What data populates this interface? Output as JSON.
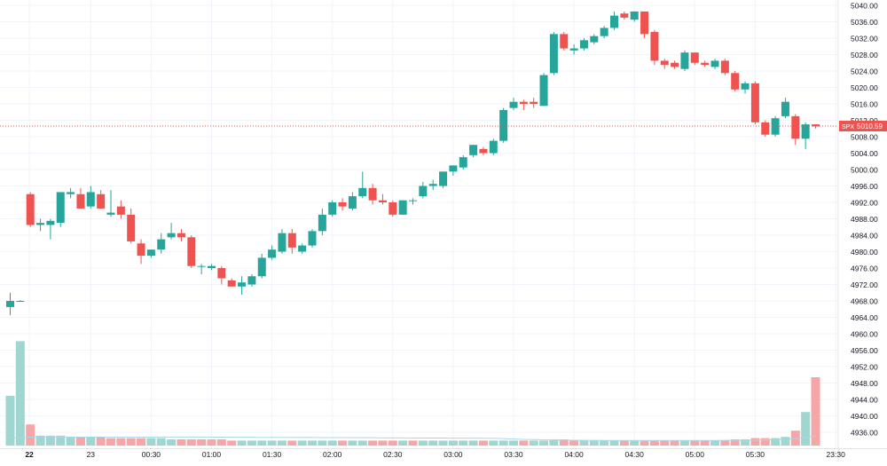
{
  "chart_data": {
    "type": "candlestick",
    "symbol": "SPX",
    "last_price": "5010.59",
    "last_price_value": 5010.59,
    "colors": {
      "up": "#26a69a",
      "down": "#ef5350",
      "volume_up": "#9fd6d0",
      "volume_down": "#f6a6a6",
      "volume_ma": "#a8d8e8",
      "price_line": "#ef5350",
      "grid": "#f0f3fa",
      "axis_text": "#131722"
    },
    "ylim": [
      4932,
      5042
    ],
    "volume_ylim": [
      0,
      100
    ],
    "x_ticks": [
      {
        "label": "22",
        "index": 1.9,
        "bold": true
      },
      {
        "label": "23",
        "index": 8
      },
      {
        "label": "00:30",
        "index": 14
      },
      {
        "label": "01:00",
        "index": 20
      },
      {
        "label": "01:30",
        "index": 26
      },
      {
        "label": "02:00",
        "index": 32
      },
      {
        "label": "02:30",
        "index": 38
      },
      {
        "label": "03:00",
        "index": 44
      },
      {
        "label": "03:30",
        "index": 50
      },
      {
        "label": "04:00",
        "index": 56
      },
      {
        "label": "04:30",
        "index": 62
      },
      {
        "label": "05:00",
        "index": 68
      },
      {
        "label": "05:30",
        "index": 74
      },
      {
        "label": "23:30",
        "index": 82
      }
    ],
    "y_ticks": [
      "5040.00",
      "5036.00",
      "5032.00",
      "5028.00",
      "5024.00",
      "5020.00",
      "5016.00",
      "5012.00",
      "5008.00",
      "5004.00",
      "5000.00",
      "4996.00",
      "4992.00",
      "4988.00",
      "4984.00",
      "4980.00",
      "4976.00",
      "4972.00",
      "4968.00",
      "4964.00",
      "4960.00",
      "4956.00",
      "4952.00",
      "4948.00",
      "4944.00",
      "4940.00",
      "4936.00"
    ],
    "candles": [
      {
        "o": 4966.5,
        "h": 4970.0,
        "l": 4964.5,
        "c": 4968.0
      },
      {
        "o": 4968.0,
        "h": 4968.2,
        "l": 4967.8,
        "c": 4968.0
      },
      {
        "o": 4994.0,
        "h": 4994.5,
        "l": 4986.0,
        "c": 4986.5
      },
      {
        "o": 4986.5,
        "h": 4988.0,
        "l": 4985.0,
        "c": 4987.0
      },
      {
        "o": 4986.5,
        "h": 4988.0,
        "l": 4983.0,
        "c": 4987.5
      },
      {
        "o": 4987.0,
        "h": 4994.5,
        "l": 4986.0,
        "c": 4994.5
      },
      {
        "o": 4994.0,
        "h": 4995.5,
        "l": 4993.0,
        "c": 4994.5
      },
      {
        "o": 4994.0,
        "h": 4995.5,
        "l": 4990.5,
        "c": 4990.5
      },
      {
        "o": 4991.0,
        "h": 4996.0,
        "l": 4990.5,
        "c": 4994.5
      },
      {
        "o": 4994.0,
        "h": 4995.0,
        "l": 4990.5,
        "c": 4990.5
      },
      {
        "o": 4989.0,
        "h": 4995.0,
        "l": 4988.5,
        "c": 4989.5
      },
      {
        "o": 4991.0,
        "h": 4992.5,
        "l": 4988.0,
        "c": 4989.0
      },
      {
        "o": 4989.0,
        "h": 4990.5,
        "l": 4982.0,
        "c": 4982.5
      },
      {
        "o": 4982.0,
        "h": 4983.0,
        "l": 4977.0,
        "c": 4979.0
      },
      {
        "o": 4979.0,
        "h": 4980.5,
        "l": 4978.5,
        "c": 4980.5
      },
      {
        "o": 4980.5,
        "h": 4984.5,
        "l": 4979.5,
        "c": 4983.0
      },
      {
        "o": 4983.5,
        "h": 4987.0,
        "l": 4983.0,
        "c": 4984.5
      },
      {
        "o": 4984.5,
        "h": 4985.5,
        "l": 4982.5,
        "c": 4983.5
      },
      {
        "o": 4983.5,
        "h": 4984.0,
        "l": 4976.0,
        "c": 4976.5
      },
      {
        "o": 4976.5,
        "h": 4977.0,
        "l": 4974.5,
        "c": 4976.5
      },
      {
        "o": 4976.0,
        "h": 4977.0,
        "l": 4975.5,
        "c": 4976.5
      },
      {
        "o": 4976.0,
        "h": 4976.5,
        "l": 4972.0,
        "c": 4973.5
      },
      {
        "o": 4973.0,
        "h": 4973.5,
        "l": 4971.5,
        "c": 4971.5
      },
      {
        "o": 4971.5,
        "h": 4974.0,
        "l": 4969.5,
        "c": 4972.5
      },
      {
        "o": 4972.0,
        "h": 4974.5,
        "l": 4971.5,
        "c": 4974.0
      },
      {
        "o": 4974.0,
        "h": 4979.5,
        "l": 4973.5,
        "c": 4978.5
      },
      {
        "o": 4978.5,
        "h": 4981.5,
        "l": 4978.0,
        "c": 4980.5
      },
      {
        "o": 4980.0,
        "h": 4985.5,
        "l": 4979.5,
        "c": 4984.5
      },
      {
        "o": 4984.5,
        "h": 4985.5,
        "l": 4979.5,
        "c": 4981.0
      },
      {
        "o": 4980.0,
        "h": 4982.0,
        "l": 4979.5,
        "c": 4981.5
      },
      {
        "o": 4981.5,
        "h": 4985.5,
        "l": 4981.0,
        "c": 4985.0
      },
      {
        "o": 4985.0,
        "h": 4990.5,
        "l": 4984.0,
        "c": 4989.0
      },
      {
        "o": 4989.0,
        "h": 4992.5,
        "l": 4988.5,
        "c": 4992.0
      },
      {
        "o": 4992.0,
        "h": 4993.0,
        "l": 4990.0,
        "c": 4991.0
      },
      {
        "o": 4990.5,
        "h": 4994.5,
        "l": 4990.0,
        "c": 4993.5
      },
      {
        "o": 4993.5,
        "h": 4999.5,
        "l": 4993.0,
        "c": 4995.5
      },
      {
        "o": 4995.5,
        "h": 4996.5,
        "l": 4991.5,
        "c": 4992.5
      },
      {
        "o": 4992.5,
        "h": 4994.0,
        "l": 4991.5,
        "c": 4992.0
      },
      {
        "o": 4992.0,
        "h": 4992.5,
        "l": 4988.5,
        "c": 4989.0
      },
      {
        "o": 4989.0,
        "h": 4992.5,
        "l": 4989.0,
        "c": 4992.5
      },
      {
        "o": 4992.5,
        "h": 4993.0,
        "l": 4991.5,
        "c": 4992.5
      },
      {
        "o": 4993.5,
        "h": 4997.0,
        "l": 4993.0,
        "c": 4996.0
      },
      {
        "o": 4996.0,
        "h": 4997.5,
        "l": 4995.0,
        "c": 4996.5
      },
      {
        "o": 4996.0,
        "h": 4999.5,
        "l": 4995.5,
        "c": 4999.5
      },
      {
        "o": 4999.5,
        "h": 5001.0,
        "l": 4998.5,
        "c": 5001.0
      },
      {
        "o": 5000.5,
        "h": 5003.5,
        "l": 5000.0,
        "c": 5003.0
      },
      {
        "o": 5003.5,
        "h": 5006.0,
        "l": 5003.0,
        "c": 5006.0
      },
      {
        "o": 5005.0,
        "h": 5005.5,
        "l": 5003.5,
        "c": 5004.0
      },
      {
        "o": 5004.0,
        "h": 5007.5,
        "l": 5003.5,
        "c": 5007.0
      },
      {
        "o": 5007.0,
        "h": 5015.0,
        "l": 5006.5,
        "c": 5014.5
      },
      {
        "o": 5015.0,
        "h": 5017.5,
        "l": 5014.5,
        "c": 5016.5
      },
      {
        "o": 5016.5,
        "h": 5017.0,
        "l": 5014.5,
        "c": 5016.0
      },
      {
        "o": 5016.5,
        "h": 5017.5,
        "l": 5015.0,
        "c": 5016.0
      },
      {
        "o": 5015.5,
        "h": 5023.5,
        "l": 5015.5,
        "c": 5023.0
      },
      {
        "o": 5023.5,
        "h": 5033.5,
        "l": 5023.0,
        "c": 5033.0
      },
      {
        "o": 5033.0,
        "h": 5033.5,
        "l": 5029.0,
        "c": 5029.5
      },
      {
        "o": 5029.0,
        "h": 5030.5,
        "l": 5028.0,
        "c": 5029.5
      },
      {
        "o": 5029.5,
        "h": 5032.0,
        "l": 5029.0,
        "c": 5031.5
      },
      {
        "o": 5031.0,
        "h": 5033.0,
        "l": 5030.5,
        "c": 5032.5
      },
      {
        "o": 5032.5,
        "h": 5035.0,
        "l": 5032.0,
        "c": 5034.5
      },
      {
        "o": 5034.5,
        "h": 5038.5,
        "l": 5034.0,
        "c": 5037.5
      },
      {
        "o": 5038.0,
        "h": 5038.5,
        "l": 5036.5,
        "c": 5037.0
      },
      {
        "o": 5036.5,
        "h": 5038.5,
        "l": 5036.0,
        "c": 5038.5
      },
      {
        "o": 5038.5,
        "h": 5038.5,
        "l": 5032.0,
        "c": 5033.0
      },
      {
        "o": 5033.5,
        "h": 5034.0,
        "l": 5025.5,
        "c": 5026.5
      },
      {
        "o": 5026.5,
        "h": 5027.0,
        "l": 5024.5,
        "c": 5025.5
      },
      {
        "o": 5026.0,
        "h": 5026.5,
        "l": 5024.5,
        "c": 5025.0
      },
      {
        "o": 5024.5,
        "h": 5029.0,
        "l": 5024.0,
        "c": 5028.5
      },
      {
        "o": 5028.5,
        "h": 5028.5,
        "l": 5025.5,
        "c": 5026.0
      },
      {
        "o": 5026.0,
        "h": 5026.5,
        "l": 5025.0,
        "c": 5025.5
      },
      {
        "o": 5025.0,
        "h": 5027.0,
        "l": 5024.5,
        "c": 5026.5
      },
      {
        "o": 5026.5,
        "h": 5027.0,
        "l": 5023.0,
        "c": 5023.5
      },
      {
        "o": 5023.5,
        "h": 5024.0,
        "l": 5019.0,
        "c": 5019.5
      },
      {
        "o": 5019.5,
        "h": 5021.5,
        "l": 5018.5,
        "c": 5021.0
      },
      {
        "o": 5021.0,
        "h": 5021.5,
        "l": 5011.0,
        "c": 5011.5
      },
      {
        "o": 5011.5,
        "h": 5012.0,
        "l": 5008.0,
        "c": 5008.5
      },
      {
        "o": 5008.5,
        "h": 5013.0,
        "l": 5008.0,
        "c": 5012.5
      },
      {
        "o": 5013.0,
        "h": 5017.5,
        "l": 5012.5,
        "c": 5016.5
      },
      {
        "o": 5013.0,
        "h": 5013.5,
        "l": 5006.0,
        "c": 5007.5
      },
      {
        "o": 5007.5,
        "h": 5011.5,
        "l": 5005.0,
        "c": 5011.0
      },
      {
        "o": 5011.0,
        "h": 5011.0,
        "l": 5010.0,
        "c": 5010.5
      }
    ],
    "volumes": [
      {
        "v": 40,
        "up": true
      },
      {
        "v": 84,
        "up": true
      },
      {
        "v": 17,
        "up": false
      },
      {
        "v": 8,
        "up": true
      },
      {
        "v": 8,
        "up": true
      },
      {
        "v": 8,
        "up": true
      },
      {
        "v": 7,
        "up": true
      },
      {
        "v": 7,
        "up": false
      },
      {
        "v": 7,
        "up": true
      },
      {
        "v": 7,
        "up": false
      },
      {
        "v": 6,
        "up": false
      },
      {
        "v": 6,
        "up": false
      },
      {
        "v": 6,
        "up": false
      },
      {
        "v": 6,
        "up": false
      },
      {
        "v": 6,
        "up": true
      },
      {
        "v": 6,
        "up": true
      },
      {
        "v": 5,
        "up": true
      },
      {
        "v": 5,
        "up": false
      },
      {
        "v": 5,
        "up": false
      },
      {
        "v": 5,
        "up": false
      },
      {
        "v": 5,
        "up": false
      },
      {
        "v": 5,
        "up": false
      },
      {
        "v": 4,
        "up": false
      },
      {
        "v": 4,
        "up": true
      },
      {
        "v": 4,
        "up": true
      },
      {
        "v": 4,
        "up": true
      },
      {
        "v": 4,
        "up": true
      },
      {
        "v": 4,
        "up": true
      },
      {
        "v": 4,
        "up": false
      },
      {
        "v": 4,
        "up": true
      },
      {
        "v": 4,
        "up": true
      },
      {
        "v": 4,
        "up": true
      },
      {
        "v": 4,
        "up": true
      },
      {
        "v": 4,
        "up": false
      },
      {
        "v": 4,
        "up": true
      },
      {
        "v": 4,
        "up": true
      },
      {
        "v": 4,
        "up": false
      },
      {
        "v": 4,
        "up": false
      },
      {
        "v": 4,
        "up": false
      },
      {
        "v": 4,
        "up": true
      },
      {
        "v": 4,
        "up": false
      },
      {
        "v": 4,
        "up": true
      },
      {
        "v": 4,
        "up": true
      },
      {
        "v": 4,
        "up": true
      },
      {
        "v": 4,
        "up": true
      },
      {
        "v": 4,
        "up": true
      },
      {
        "v": 4,
        "up": true
      },
      {
        "v": 4,
        "up": false
      },
      {
        "v": 4,
        "up": true
      },
      {
        "v": 4,
        "up": true
      },
      {
        "v": 4,
        "up": true
      },
      {
        "v": 4,
        "up": false
      },
      {
        "v": 4,
        "up": true
      },
      {
        "v": 4,
        "up": true
      },
      {
        "v": 5,
        "up": true
      },
      {
        "v": 5,
        "up": false
      },
      {
        "v": 4,
        "up": false
      },
      {
        "v": 4,
        "up": true
      },
      {
        "v": 4,
        "up": true
      },
      {
        "v": 4,
        "up": true
      },
      {
        "v": 4,
        "up": true
      },
      {
        "v": 4,
        "up": false
      },
      {
        "v": 4,
        "up": true
      },
      {
        "v": 4,
        "up": false
      },
      {
        "v": 4,
        "up": false
      },
      {
        "v": 4,
        "up": false
      },
      {
        "v": 4,
        "up": false
      },
      {
        "v": 4,
        "up": true
      },
      {
        "v": 4,
        "up": false
      },
      {
        "v": 4,
        "up": false
      },
      {
        "v": 4,
        "up": true
      },
      {
        "v": 4,
        "up": false
      },
      {
        "v": 5,
        "up": false
      },
      {
        "v": 5,
        "up": true
      },
      {
        "v": 6,
        "up": false
      },
      {
        "v": 6,
        "up": false
      },
      {
        "v": 6,
        "up": true
      },
      {
        "v": 7,
        "up": true
      },
      {
        "v": 12,
        "up": false
      },
      {
        "v": 27,
        "up": true
      },
      {
        "v": 55,
        "up": false
      }
    ],
    "volume_ma": [
      6,
      6.5,
      6.8,
      6.8,
      6.9,
      6.9,
      6.9,
      6.9,
      6.9,
      6.9,
      6.9,
      6.9,
      6.9,
      6.9,
      6.9,
      6.9,
      6.9,
      6.9,
      6.9,
      6.9,
      6.8,
      6.8,
      6.8,
      6.7,
      6.7,
      6.6,
      6.6,
      6.6,
      6.5,
      6.5,
      6.5,
      6.4,
      6.4,
      6.4,
      6.3,
      6.3,
      6.3,
      6.2,
      6.2,
      6.2,
      6.1,
      6.1,
      6.1,
      6.1,
      6.0,
      6.0,
      6.0,
      5.9,
      5.9,
      5.6,
      5.3,
      5.0,
      4.8,
      4.6,
      4.5,
      4.4,
      4.3,
      4.2,
      4.2,
      4.1,
      4.1,
      4.1,
      4.1,
      4.1,
      4.1,
      4.1,
      4.1,
      4.1,
      4.1,
      4.1,
      4.1,
      4.2,
      4.2,
      4.3,
      4.4,
      4.5,
      4.7,
      5.0,
      5.5,
      6.5,
      8.0
    ]
  }
}
